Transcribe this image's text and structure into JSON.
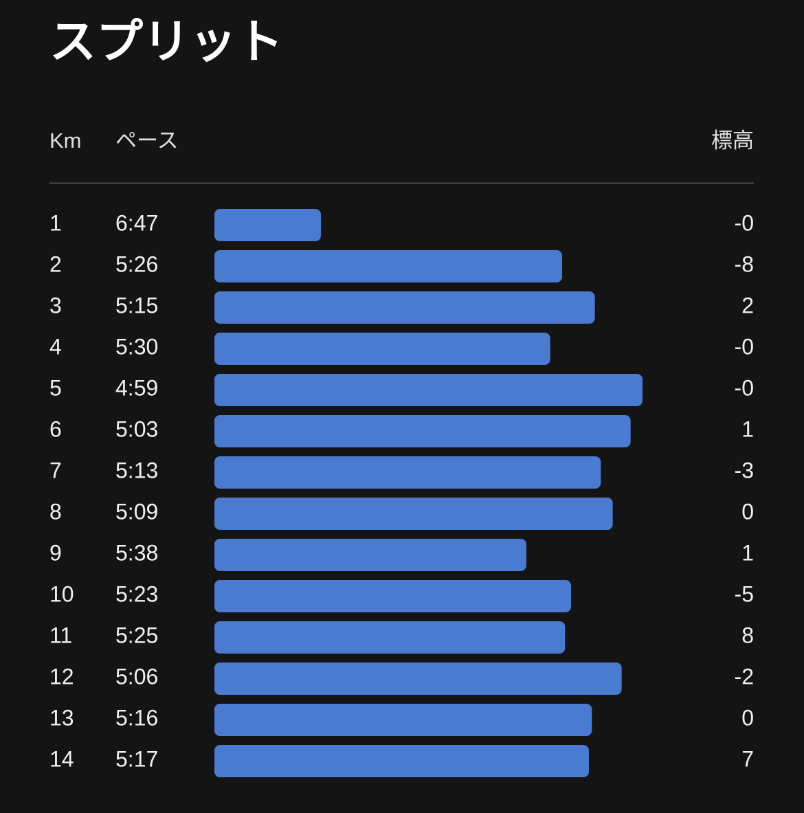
{
  "header": {
    "title": "スプリット"
  },
  "columns": [
    "Km",
    "ペース",
    "標高"
  ],
  "rows": [
    {
      "km": 1,
      "pace": "6:47",
      "elevation": "-0"
    },
    {
      "km": 2,
      "pace": "5:26",
      "elevation": "-8"
    },
    {
      "km": 3,
      "pace": "5:15",
      "elevation": "2"
    },
    {
      "km": 4,
      "pace": "5:30",
      "elevation": "-0"
    },
    {
      "km": 5,
      "pace": "4:59",
      "elevation": "-0"
    },
    {
      "km": 6,
      "pace": "5:03",
      "elevation": "1"
    },
    {
      "km": 7,
      "pace": "5:13",
      "elevation": "-3"
    },
    {
      "km": 8,
      "pace": "5:09",
      "elevation": "0"
    },
    {
      "km": 9,
      "pace": "5:38",
      "elevation": "1"
    },
    {
      "km": 10,
      "pace": "5:23",
      "elevation": "-5"
    },
    {
      "km": 11,
      "pace": "5:25",
      "elevation": "8"
    },
    {
      "km": 12,
      "pace": "5:06",
      "elevation": "-2"
    },
    {
      "km": 13,
      "pace": "5:16",
      "elevation": "0"
    },
    {
      "km": 14,
      "pace": "5:17",
      "elevation": "7"
    }
  ],
  "bar_color": "#4a7bd0"
}
